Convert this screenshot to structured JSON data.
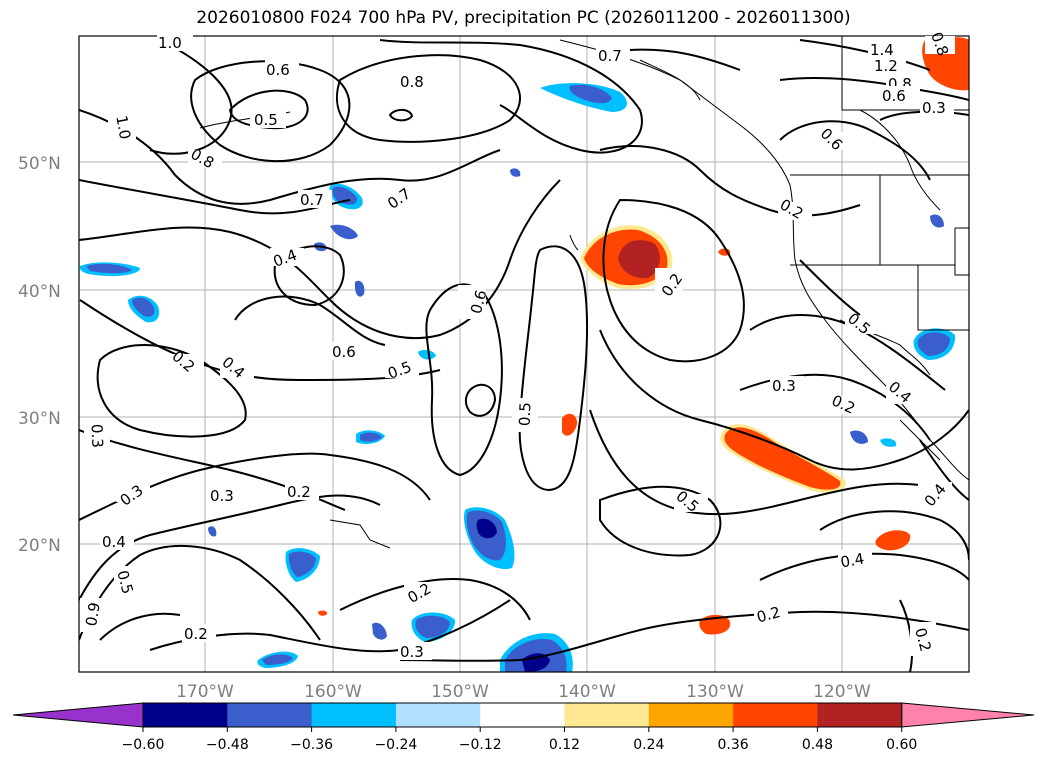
{
  "title": "2026010800 F024 700 hPa PV, precipitation PC (2026011200 - 2026011300)",
  "lat_labels": [
    "50°N",
    "40°N",
    "30°N",
    "20°N"
  ],
  "lon_labels": [
    "170°W",
    "160°W",
    "150°W",
    "140°W",
    "130°W",
    "120°W"
  ],
  "colorbar": {
    "ticks": [
      "−0.60",
      "−0.48",
      "−0.36",
      "−0.24",
      "−0.12",
      "0.12",
      "0.24",
      "0.36",
      "0.48",
      "0.60"
    ],
    "colors": [
      "#9932cc",
      "#00008b",
      "#3a5fcd",
      "#00bfff",
      "#afe0ff",
      "#ffffff",
      "#ffe88f",
      "#ffa500",
      "#ff4500",
      "#b22222",
      "#ff82ab"
    ]
  },
  "contour_labels": [
    "1.0",
    "0.6",
    "0.5",
    "0.8",
    "0.7",
    "1.4",
    "1.2",
    "0.8",
    "0.6",
    "0.3",
    "1.0",
    "0.8",
    "0.7",
    "0.7",
    "0.6",
    "0.4",
    "0.6",
    "0.5",
    "0.6",
    "0.2",
    "0.5",
    "0.2",
    "0.4",
    "0.3",
    "0.2",
    "0.5",
    "0.3",
    "0.3",
    "0.2",
    "0.3",
    "0.4",
    "0.5",
    "0.9",
    "0.2",
    "0.3",
    "0.2",
    "0.2",
    "0.4",
    "0.2",
    "0.5",
    "0.4",
    "0.4",
    "0.2",
    "0.8"
  ],
  "fill_colors": {
    "dark_blue": "#00008b",
    "mid_blue": "#3a5fcd",
    "light_blue": "#00bfff",
    "red": "#ff4500",
    "dark_red": "#b22222",
    "orange": "#ffa500",
    "yellow": "#ffe88f"
  }
}
